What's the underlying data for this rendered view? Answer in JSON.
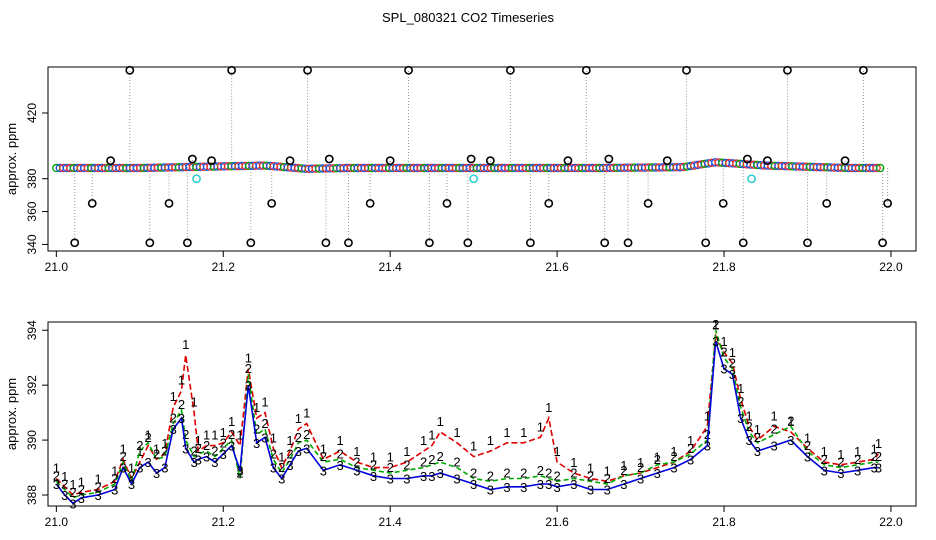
{
  "figure_title": "SPL_080321  CO2 Timeseries",
  "chart_data": [
    {
      "type": "scatter",
      "panel": "top",
      "title": "SPL_080321  CO2 Timeseries",
      "xlabel": "",
      "ylabel": "approx. ppm",
      "xlim": [
        20.99,
        22.03
      ],
      "ylim": [
        336,
        448
      ],
      "xticks": [
        "21.0",
        "21.2",
        "21.4",
        "21.6",
        "21.8",
        "22.0"
      ],
      "yticks": [
        "340",
        "360",
        "380",
        "420"
      ],
      "grid": false,
      "legend": "none",
      "series": [
        {
          "name": "black circles (outliers, dropped to baseline)",
          "x": [
            21.022,
            21.043,
            21.065,
            21.088,
            21.112,
            21.135,
            21.157,
            21.163,
            21.186,
            21.21,
            21.233,
            21.258,
            21.28,
            21.301,
            21.323,
            21.327,
            21.35,
            21.376,
            21.4,
            21.422,
            21.447,
            21.468,
            21.493,
            21.497,
            21.52,
            21.544,
            21.568,
            21.59,
            21.613,
            21.635,
            21.657,
            21.662,
            21.685,
            21.709,
            21.732,
            21.755,
            21.778,
            21.799,
            21.823,
            21.828,
            21.852,
            21.876,
            21.9,
            21.923,
            21.945,
            21.967,
            21.99,
            21.996
          ],
          "values": [
            341,
            365,
            391,
            446,
            341,
            365,
            341,
            392,
            391,
            446,
            341,
            365,
            391,
            446,
            341,
            392,
            341,
            365,
            391,
            446,
            341,
            365,
            341,
            392,
            391,
            446,
            341,
            365,
            391,
            446,
            341,
            392,
            341,
            365,
            391,
            446,
            341,
            365,
            341,
            392,
            391,
            446,
            341,
            365,
            391,
            446,
            341,
            365
          ]
        },
        {
          "name": "cyan circles",
          "x": [
            21.168,
            21.5,
            21.833
          ],
          "values": [
            380,
            380,
            380
          ]
        },
        {
          "name": "main trace (1/2/3)",
          "x": [
            21.0,
            21.1,
            21.15,
            21.2,
            21.25,
            21.3,
            21.35,
            21.45,
            21.55,
            21.65,
            21.75,
            21.79,
            21.85,
            21.95,
            21.99
          ],
          "values": [
            386.5,
            386.5,
            387.0,
            387.5,
            388.0,
            386.0,
            386.5,
            386.5,
            386.5,
            386.5,
            387.0,
            390.0,
            388.0,
            386.5,
            386.5
          ]
        }
      ]
    },
    {
      "type": "line",
      "panel": "bottom",
      "xlabel": "",
      "ylabel": "approx. ppm",
      "xlim": [
        20.99,
        22.03
      ],
      "ylim": [
        387.6,
        394.3
      ],
      "xticks": [
        "21.0",
        "21.2",
        "21.4",
        "21.6",
        "21.8",
        "22.0"
      ],
      "yticks": [
        "388",
        "390",
        "392",
        "394"
      ],
      "grid": false,
      "legend": "none",
      "series": [
        {
          "name": "1",
          "color": "#e00000",
          "x": [
            21.0,
            21.01,
            21.02,
            21.03,
            21.05,
            21.07,
            21.08,
            21.09,
            21.1,
            21.11,
            21.12,
            21.13,
            21.14,
            21.15,
            21.155,
            21.165,
            21.17,
            21.18,
            21.19,
            21.2,
            21.21,
            21.22,
            21.23,
            21.24,
            21.25,
            21.26,
            21.27,
            21.28,
            21.29,
            21.3,
            21.32,
            21.34,
            21.36,
            21.38,
            21.4,
            21.42,
            21.44,
            21.45,
            21.46,
            21.48,
            21.5,
            21.52,
            21.54,
            21.56,
            21.58,
            21.59,
            21.6,
            21.62,
            21.64,
            21.66,
            21.68,
            21.7,
            21.72,
            21.74,
            21.76,
            21.78,
            21.79,
            21.8,
            21.81,
            21.82,
            21.83,
            21.84,
            21.86,
            21.88,
            21.9,
            21.92,
            21.94,
            21.96,
            21.98,
            21.985
          ],
          "values": [
            388.6,
            388.3,
            388.0,
            388.1,
            388.2,
            388.5,
            389.3,
            388.6,
            389.2,
            389.8,
            389.3,
            389.5,
            391.2,
            391.8,
            393.1,
            391.0,
            389.6,
            389.8,
            389.8,
            389.9,
            390.3,
            389.8,
            392.6,
            390.8,
            391.0,
            389.7,
            389.0,
            389.6,
            390.4,
            390.6,
            389.3,
            389.6,
            389.2,
            389.0,
            389.0,
            389.2,
            389.6,
            389.8,
            390.3,
            389.9,
            389.4,
            389.6,
            389.9,
            389.9,
            390.1,
            390.8,
            389.2,
            388.8,
            388.6,
            388.5,
            388.7,
            388.8,
            389.0,
            389.2,
            389.6,
            390.5,
            393.8,
            393.2,
            392.8,
            391.5,
            390.5,
            390.0,
            390.5,
            390.3,
            389.7,
            389.2,
            389.1,
            389.2,
            389.3,
            389.5
          ]
        },
        {
          "name": "2",
          "color": "#00aa00",
          "x": [
            21.0,
            21.01,
            21.02,
            21.03,
            21.05,
            21.07,
            21.08,
            21.09,
            21.1,
            21.11,
            21.12,
            21.13,
            21.14,
            21.15,
            21.155,
            21.165,
            21.17,
            21.18,
            21.19,
            21.2,
            21.21,
            21.22,
            21.23,
            21.24,
            21.25,
            21.26,
            21.27,
            21.28,
            21.29,
            21.3,
            21.32,
            21.34,
            21.36,
            21.38,
            21.4,
            21.42,
            21.44,
            21.45,
            21.46,
            21.48,
            21.5,
            21.52,
            21.54,
            21.56,
            21.58,
            21.59,
            21.6,
            21.62,
            21.64,
            21.66,
            21.68,
            21.7,
            21.72,
            21.74,
            21.76,
            21.78,
            21.79,
            21.8,
            21.81,
            21.82,
            21.83,
            21.84,
            21.86,
            21.88,
            21.9,
            21.92,
            21.94,
            21.96,
            21.98,
            21.985
          ],
          "values": [
            388.5,
            388.2,
            387.9,
            388.0,
            388.1,
            388.4,
            389.2,
            388.5,
            389.6,
            389.9,
            389.3,
            389.4,
            390.6,
            391.1,
            390.0,
            389.4,
            389.5,
            389.6,
            389.4,
            389.7,
            390.0,
            388.6,
            392.4,
            390.2,
            390.4,
            389.3,
            388.8,
            389.3,
            389.9,
            390.0,
            389.2,
            389.3,
            389.0,
            388.9,
            388.8,
            388.9,
            389.0,
            389.1,
            389.2,
            389.0,
            388.6,
            388.5,
            388.6,
            388.6,
            388.7,
            388.6,
            388.5,
            388.6,
            388.5,
            388.4,
            388.7,
            388.8,
            389.1,
            389.2,
            389.5,
            390.0,
            394.0,
            393.0,
            392.6,
            391.2,
            390.3,
            389.9,
            390.2,
            390.5,
            389.6,
            389.1,
            389.0,
            389.1,
            389.2,
            389.2
          ]
        },
        {
          "name": "3",
          "color": "#0000dd",
          "x": [
            21.0,
            21.01,
            21.02,
            21.03,
            21.05,
            21.07,
            21.08,
            21.09,
            21.1,
            21.11,
            21.12,
            21.13,
            21.14,
            21.15,
            21.155,
            21.165,
            21.17,
            21.18,
            21.19,
            21.2,
            21.21,
            21.22,
            21.23,
            21.24,
            21.25,
            21.26,
            21.27,
            21.28,
            21.29,
            21.3,
            21.32,
            21.34,
            21.36,
            21.38,
            21.4,
            21.42,
            21.44,
            21.45,
            21.46,
            21.48,
            21.5,
            21.52,
            21.54,
            21.56,
            21.58,
            21.59,
            21.6,
            21.62,
            21.64,
            21.66,
            21.68,
            21.7,
            21.72,
            21.74,
            21.76,
            21.78,
            21.79,
            21.8,
            21.81,
            21.82,
            21.83,
            21.84,
            21.86,
            21.88,
            21.9,
            21.92,
            21.94,
            21.96,
            21.98,
            21.985
          ],
          "values": [
            388.4,
            388.0,
            387.7,
            387.9,
            388.0,
            388.2,
            389.0,
            388.4,
            389.0,
            389.2,
            388.8,
            389.0,
            390.4,
            390.8,
            389.7,
            389.2,
            389.3,
            389.4,
            389.2,
            389.5,
            389.8,
            388.9,
            392.0,
            389.9,
            390.1,
            389.0,
            388.6,
            389.1,
            389.6,
            389.7,
            388.9,
            389.1,
            388.9,
            388.7,
            388.6,
            388.6,
            388.7,
            388.7,
            388.8,
            388.6,
            388.4,
            388.2,
            388.3,
            388.3,
            388.4,
            388.4,
            388.3,
            388.4,
            388.2,
            388.2,
            388.4,
            388.6,
            388.8,
            389.0,
            389.3,
            389.8,
            393.6,
            392.6,
            392.4,
            390.8,
            390.0,
            389.6,
            389.8,
            390.0,
            389.4,
            388.9,
            388.8,
            388.9,
            389.0,
            389.0
          ]
        }
      ]
    }
  ]
}
